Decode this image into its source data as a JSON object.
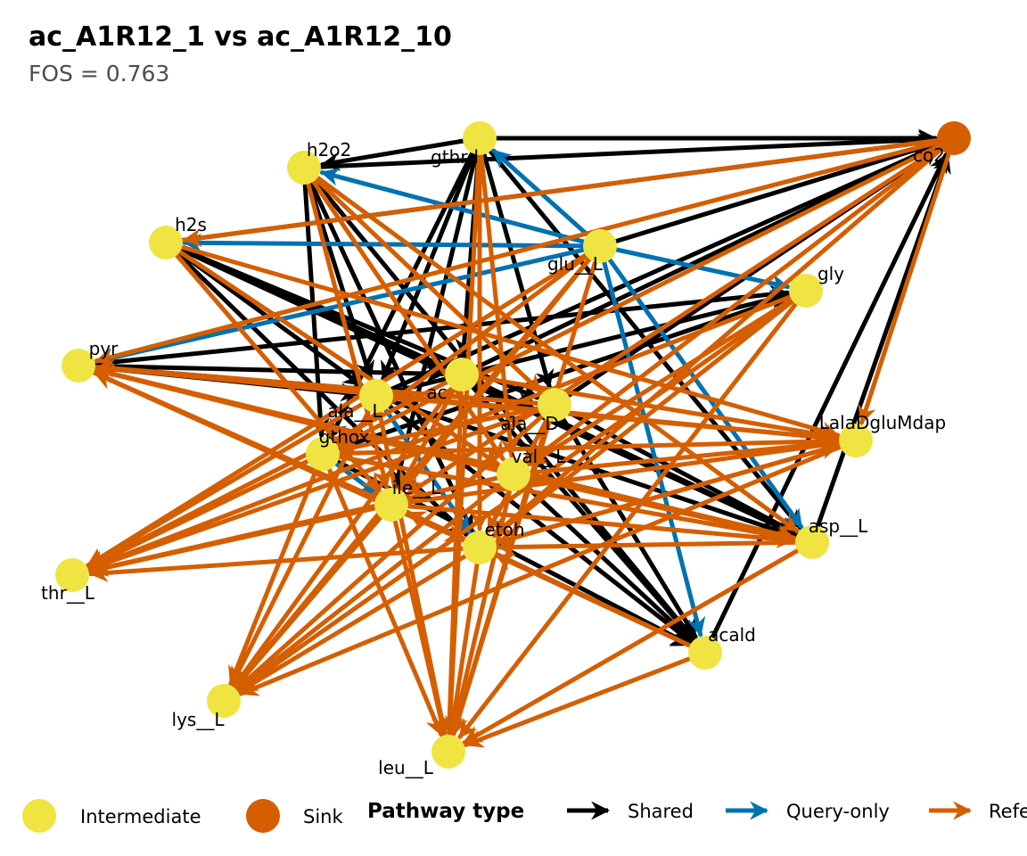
{
  "title": "ac_A1R12_1 vs ac_A1R12_10",
  "subtitle": "FOS = 0.763",
  "colors": {
    "intermediate": "#F0E442",
    "sink": "#D55E00",
    "shared": "#000000",
    "query_only": "#0072B2",
    "reference_only": "#D55E00"
  },
  "legend": {
    "node_types": [
      {
        "key": "intermediate",
        "label": "Intermediate"
      },
      {
        "key": "sink",
        "label": "Sink"
      }
    ],
    "pathway_title": "Pathway type",
    "pathway_types": [
      {
        "key": "shared",
        "label": "Shared"
      },
      {
        "key": "query_only",
        "label": "Query-only"
      },
      {
        "key": "reference_only",
        "label": "Reference-only"
      }
    ]
  },
  "nodes": [
    {
      "id": "co2",
      "label": "co2",
      "type": "sink"
    },
    {
      "id": "gthrd",
      "label": "gthrd",
      "type": "intermediate"
    },
    {
      "id": "h2o2",
      "label": "h2o2",
      "type": "intermediate"
    },
    {
      "id": "h2s",
      "label": "h2s",
      "type": "intermediate"
    },
    {
      "id": "glu__L",
      "label": "glu__L",
      "type": "intermediate"
    },
    {
      "id": "gly",
      "label": "gly",
      "type": "intermediate"
    },
    {
      "id": "pyr",
      "label": "pyr",
      "type": "intermediate"
    },
    {
      "id": "ac",
      "label": "ac",
      "type": "intermediate"
    },
    {
      "id": "ala__L",
      "label": "ala__L",
      "type": "intermediate"
    },
    {
      "id": "ala__D",
      "label": "ala__D",
      "type": "intermediate"
    },
    {
      "id": "LalaDgluMdap",
      "label": "LalaDgluMdap",
      "type": "intermediate"
    },
    {
      "id": "gthox",
      "label": "gthox",
      "type": "intermediate"
    },
    {
      "id": "val__L",
      "label": "val__L",
      "type": "intermediate"
    },
    {
      "id": "ile__L",
      "label": "ile__L",
      "type": "intermediate"
    },
    {
      "id": "etoh",
      "label": "etoh",
      "type": "intermediate"
    },
    {
      "id": "asp__L",
      "label": "asp__L",
      "type": "intermediate"
    },
    {
      "id": "thr__L",
      "label": "thr__L",
      "type": "intermediate"
    },
    {
      "id": "acald",
      "label": "acald",
      "type": "intermediate"
    },
    {
      "id": "lys__L",
      "label": "lys__L",
      "type": "intermediate"
    },
    {
      "id": "leu__L",
      "label": "leu__L",
      "type": "intermediate"
    }
  ],
  "edges": [
    {
      "from": "gthrd",
      "to": "co2",
      "type": "shared"
    },
    {
      "from": "h2o2",
      "to": "co2",
      "type": "shared"
    },
    {
      "from": "h2s",
      "to": "co2",
      "type": "shared"
    },
    {
      "from": "glu__L",
      "to": "co2",
      "type": "shared"
    },
    {
      "from": "ac",
      "to": "co2",
      "type": "shared"
    },
    {
      "from": "ala__L",
      "to": "co2",
      "type": "shared"
    },
    {
      "from": "ala__D",
      "to": "co2",
      "type": "shared"
    },
    {
      "from": "asp__L",
      "to": "co2",
      "type": "shared"
    },
    {
      "from": "acald",
      "to": "co2",
      "type": "shared"
    },
    {
      "from": "gthrd",
      "to": "h2o2",
      "type": "shared"
    },
    {
      "from": "gthrd",
      "to": "ac",
      "type": "shared"
    },
    {
      "from": "gthrd",
      "to": "ala__L",
      "type": "shared"
    },
    {
      "from": "gthrd",
      "to": "gthox",
      "type": "shared"
    },
    {
      "from": "gthrd",
      "to": "ala__D",
      "type": "shared"
    },
    {
      "from": "gthrd",
      "to": "asp__L",
      "type": "shared"
    },
    {
      "from": "gthrd",
      "to": "ile__L",
      "type": "shared"
    },
    {
      "from": "h2o2",
      "to": "ala__L",
      "type": "shared"
    },
    {
      "from": "h2o2",
      "to": "etoh",
      "type": "shared"
    },
    {
      "from": "h2o2",
      "to": "gthox",
      "type": "shared"
    },
    {
      "from": "h2o2",
      "to": "acald",
      "type": "shared"
    },
    {
      "from": "h2s",
      "to": "ac",
      "type": "shared"
    },
    {
      "from": "h2s",
      "to": "ala__L",
      "type": "shared"
    },
    {
      "from": "h2s",
      "to": "ala__D",
      "type": "shared"
    },
    {
      "from": "h2s",
      "to": "asp__L",
      "type": "shared"
    },
    {
      "from": "h2s",
      "to": "etoh",
      "type": "shared"
    },
    {
      "from": "pyr",
      "to": "ala__L",
      "type": "shared"
    },
    {
      "from": "pyr",
      "to": "ac",
      "type": "shared"
    },
    {
      "from": "pyr",
      "to": "ala__D",
      "type": "shared"
    },
    {
      "from": "pyr",
      "to": "gly",
      "type": "shared"
    },
    {
      "from": "ala__L",
      "to": "gly",
      "type": "shared"
    },
    {
      "from": "ala__L",
      "to": "asp__L",
      "type": "shared"
    },
    {
      "from": "ala__L",
      "to": "acald",
      "type": "shared"
    },
    {
      "from": "ala__D",
      "to": "acald",
      "type": "shared"
    },
    {
      "from": "ala__D",
      "to": "asp__L",
      "type": "shared"
    },
    {
      "from": "ac",
      "to": "asp__L",
      "type": "shared"
    },
    {
      "from": "ac",
      "to": "acald",
      "type": "shared"
    },
    {
      "from": "gthox",
      "to": "gly",
      "type": "shared"
    },
    {
      "from": "gthox",
      "to": "acald",
      "type": "shared"
    },
    {
      "from": "ile__L",
      "to": "acald",
      "type": "shared"
    },
    {
      "from": "etoh",
      "to": "acald",
      "type": "shared"
    },
    {
      "from": "val__L",
      "to": "acald",
      "type": "shared"
    },
    {
      "from": "glu__L",
      "to": "gthrd",
      "type": "query_only"
    },
    {
      "from": "glu__L",
      "to": "h2o2",
      "type": "query_only"
    },
    {
      "from": "glu__L",
      "to": "h2s",
      "type": "query_only"
    },
    {
      "from": "glu__L",
      "to": "gly",
      "type": "query_only"
    },
    {
      "from": "glu__L",
      "to": "pyr",
      "type": "query_only"
    },
    {
      "from": "glu__L",
      "to": "asp__L",
      "type": "query_only"
    },
    {
      "from": "glu__L",
      "to": "acald",
      "type": "query_only"
    },
    {
      "from": "ala__L",
      "to": "etoh",
      "type": "query_only"
    },
    {
      "from": "gthox",
      "to": "ile__L",
      "type": "query_only"
    },
    {
      "from": "co2",
      "to": "h2s",
      "type": "reference_only"
    },
    {
      "from": "co2",
      "to": "pyr",
      "type": "reference_only"
    },
    {
      "from": "co2",
      "to": "gthox",
      "type": "reference_only"
    },
    {
      "from": "co2",
      "to": "ile__L",
      "type": "reference_only"
    },
    {
      "from": "co2",
      "to": "val__L",
      "type": "reference_only"
    },
    {
      "from": "co2",
      "to": "etoh",
      "type": "reference_only"
    },
    {
      "from": "co2",
      "to": "LalaDgluMdap",
      "type": "reference_only"
    },
    {
      "from": "glu__L",
      "to": "thr__L",
      "type": "reference_only"
    },
    {
      "from": "glu__L",
      "to": "lys__L",
      "type": "reference_only"
    },
    {
      "from": "glu__L",
      "to": "leu__L",
      "type": "reference_only"
    },
    {
      "from": "glu__L",
      "to": "ile__L",
      "type": "reference_only"
    },
    {
      "from": "glu__L",
      "to": "gthox",
      "type": "reference_only"
    },
    {
      "from": "gly",
      "to": "thr__L",
      "type": "reference_only"
    },
    {
      "from": "gly",
      "to": "etoh",
      "type": "reference_only"
    },
    {
      "from": "gly",
      "to": "val__L",
      "type": "reference_only"
    },
    {
      "from": "gly",
      "to": "lys__L",
      "type": "reference_only"
    },
    {
      "from": "gly",
      "to": "leu__L",
      "type": "reference_only"
    },
    {
      "from": "h2o2",
      "to": "ile__L",
      "type": "reference_only"
    },
    {
      "from": "h2o2",
      "to": "val__L",
      "type": "reference_only"
    },
    {
      "from": "h2o2",
      "to": "ala__D",
      "type": "reference_only"
    },
    {
      "from": "h2o2",
      "to": "asp__L",
      "type": "reference_only"
    },
    {
      "from": "gthrd",
      "to": "leu__L",
      "type": "reference_only"
    },
    {
      "from": "gthrd",
      "to": "etoh",
      "type": "reference_only"
    },
    {
      "from": "gthrd",
      "to": "val__L",
      "type": "reference_only"
    },
    {
      "from": "h2s",
      "to": "ile__L",
      "type": "reference_only"
    },
    {
      "from": "h2s",
      "to": "LalaDgluMdap",
      "type": "reference_only"
    },
    {
      "from": "h2s",
      "to": "val__L",
      "type": "reference_only"
    },
    {
      "from": "pyr",
      "to": "etoh",
      "type": "reference_only"
    },
    {
      "from": "pyr",
      "to": "LalaDgluMdap",
      "type": "reference_only"
    },
    {
      "from": "pyr",
      "to": "asp__L",
      "type": "reference_only"
    },
    {
      "from": "ac",
      "to": "thr__L",
      "type": "reference_only"
    },
    {
      "from": "ac",
      "to": "lys__L",
      "type": "reference_only"
    },
    {
      "from": "ac",
      "to": "leu__L",
      "type": "reference_only"
    },
    {
      "from": "ac",
      "to": "ile__L",
      "type": "reference_only"
    },
    {
      "from": "ac",
      "to": "LalaDgluMdap",
      "type": "reference_only"
    },
    {
      "from": "ala__L",
      "to": "thr__L",
      "type": "reference_only"
    },
    {
      "from": "ala__L",
      "to": "lys__L",
      "type": "reference_only"
    },
    {
      "from": "ala__L",
      "to": "leu__L",
      "type": "reference_only"
    },
    {
      "from": "ala__L",
      "to": "LalaDgluMdap",
      "type": "reference_only"
    },
    {
      "from": "ala__D",
      "to": "thr__L",
      "type": "reference_only"
    },
    {
      "from": "ala__D",
      "to": "lys__L",
      "type": "reference_only"
    },
    {
      "from": "ala__D",
      "to": "leu__L",
      "type": "reference_only"
    },
    {
      "from": "ala__D",
      "to": "etoh",
      "type": "reference_only"
    },
    {
      "from": "ala__D",
      "to": "pyr",
      "type": "reference_only"
    },
    {
      "from": "ala__D",
      "to": "gthox",
      "type": "reference_only"
    },
    {
      "from": "gthox",
      "to": "thr__L",
      "type": "reference_only"
    },
    {
      "from": "gthox",
      "to": "lys__L",
      "type": "reference_only"
    },
    {
      "from": "gthox",
      "to": "leu__L",
      "type": "reference_only"
    },
    {
      "from": "gthox",
      "to": "LalaDgluMdap",
      "type": "reference_only"
    },
    {
      "from": "gthox",
      "to": "asp__L",
      "type": "reference_only"
    },
    {
      "from": "val__L",
      "to": "thr__L",
      "type": "reference_only"
    },
    {
      "from": "val__L",
      "to": "lys__L",
      "type": "reference_only"
    },
    {
      "from": "val__L",
      "to": "leu__L",
      "type": "reference_only"
    },
    {
      "from": "val__L",
      "to": "pyr",
      "type": "reference_only"
    },
    {
      "from": "val__L",
      "to": "LalaDgluMdap",
      "type": "reference_only"
    },
    {
      "from": "val__L",
      "to": "asp__L",
      "type": "reference_only"
    },
    {
      "from": "ile__L",
      "to": "thr__L",
      "type": "reference_only"
    },
    {
      "from": "ile__L",
      "to": "lys__L",
      "type": "reference_only"
    },
    {
      "from": "ile__L",
      "to": "leu__L",
      "type": "reference_only"
    },
    {
      "from": "ile__L",
      "to": "LalaDgluMdap",
      "type": "reference_only"
    },
    {
      "from": "ile__L",
      "to": "asp__L",
      "type": "reference_only"
    },
    {
      "from": "ile__L",
      "to": "pyr",
      "type": "reference_only"
    },
    {
      "from": "etoh",
      "to": "thr__L",
      "type": "reference_only"
    },
    {
      "from": "etoh",
      "to": "lys__L",
      "type": "reference_only"
    },
    {
      "from": "etoh",
      "to": "leu__L",
      "type": "reference_only"
    },
    {
      "from": "etoh",
      "to": "LalaDgluMdap",
      "type": "reference_only"
    },
    {
      "from": "etoh",
      "to": "pyr",
      "type": "reference_only"
    },
    {
      "from": "LalaDgluMdap",
      "to": "lys__L",
      "type": "reference_only"
    },
    {
      "from": "LalaDgluMdap",
      "to": "etoh",
      "type": "reference_only"
    },
    {
      "from": "asp__L",
      "to": "etoh",
      "type": "reference_only"
    },
    {
      "from": "asp__L",
      "to": "leu__L",
      "type": "reference_only"
    },
    {
      "from": "acald",
      "to": "leu__L",
      "type": "reference_only"
    },
    {
      "from": "acald",
      "to": "ile__L",
      "type": "reference_only"
    },
    {
      "from": "acald",
      "to": "etoh",
      "type": "reference_only"
    }
  ]
}
